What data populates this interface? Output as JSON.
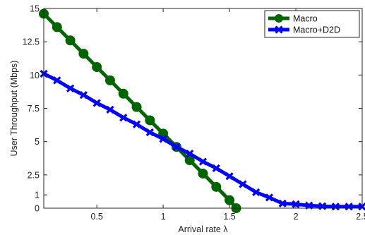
{
  "chart_data": {
    "type": "line",
    "xlabel": "Arrival rate λ",
    "ylabel": "User Throughput (Mbps)",
    "xlim": [
      0.1,
      2.5
    ],
    "ylim": [
      0,
      15
    ],
    "xticks": [
      0.5,
      1,
      1.5,
      2,
      2.5
    ],
    "xtick_labels": [
      "0.5",
      "1",
      "1.5",
      "2",
      "2.5"
    ],
    "yticks": [
      0,
      1,
      2.5,
      5,
      7.5,
      10,
      12.5,
      15
    ],
    "ytick_labels": [
      "0",
      "1",
      "2.5",
      "5",
      "7.5",
      "10",
      "12.5",
      "15"
    ],
    "grid": false,
    "legend_position": "top-right",
    "series": [
      {
        "name": "Macro",
        "color": "#006400",
        "marker": "circle",
        "x": [
          0.1,
          0.2,
          0.3,
          0.4,
          0.5,
          0.6,
          0.7,
          0.8,
          0.9,
          1.0,
          1.1,
          1.2,
          1.3,
          1.4,
          1.5,
          1.55
        ],
        "y": [
          14.6,
          13.6,
          12.6,
          11.6,
          10.6,
          9.6,
          8.6,
          7.6,
          6.6,
          5.6,
          4.6,
          3.6,
          2.6,
          1.6,
          0.6,
          0
        ]
      },
      {
        "name": "Macro+D2D",
        "color": "#0000ff",
        "marker": "x",
        "x": [
          0.1,
          0.2,
          0.3,
          0.4,
          0.5,
          0.6,
          0.7,
          0.8,
          0.9,
          1.0,
          1.1,
          1.2,
          1.3,
          1.4,
          1.5,
          1.6,
          1.7,
          1.8,
          1.9,
          2.0,
          2.1,
          2.2,
          2.3,
          2.4,
          2.5
        ],
        "y": [
          10.1,
          9.6,
          9.0,
          8.5,
          7.9,
          7.4,
          6.8,
          6.3,
          5.7,
          5.2,
          4.6,
          4.1,
          3.5,
          3.0,
          2.4,
          1.8,
          1.2,
          0.8,
          0.35,
          0.3,
          0.2,
          0.15,
          0.12,
          0.12,
          0.12
        ]
      }
    ]
  }
}
